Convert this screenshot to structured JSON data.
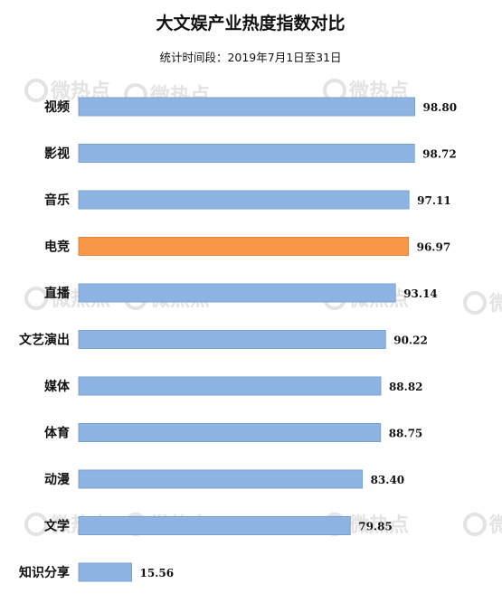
{
  "chart_data": {
    "type": "bar",
    "orientation": "horizontal",
    "title": "大文娱产业热度指数对比",
    "subtitle": "统计时间段：2019年7月1日至31日",
    "categories": [
      "视频",
      "影视",
      "音乐",
      "电竞",
      "直播",
      "文艺演出",
      "媒体",
      "体育",
      "动漫",
      "文学",
      "知识分享"
    ],
    "values": [
      98.8,
      98.72,
      97.11,
      96.97,
      93.14,
      90.22,
      88.82,
      88.75,
      83.4,
      79.85,
      15.56
    ],
    "value_labels": [
      "98.80",
      "98.72",
      "97.11",
      "96.97",
      "93.14",
      "90.22",
      "88.82",
      "88.75",
      "83.40",
      "79.85",
      "15.56"
    ],
    "highlight_category": "电竞",
    "xlim": [
      0,
      100
    ],
    "grid": false,
    "legend": "none",
    "watermark": "微热点",
    "colors": {
      "bar": "#8eb4e3",
      "bar_border": "#7aa0d0",
      "highlight": "#f79646",
      "highlight_border": "#e6843a",
      "text": "#111111",
      "watermark": "#e3e3e3"
    }
  }
}
